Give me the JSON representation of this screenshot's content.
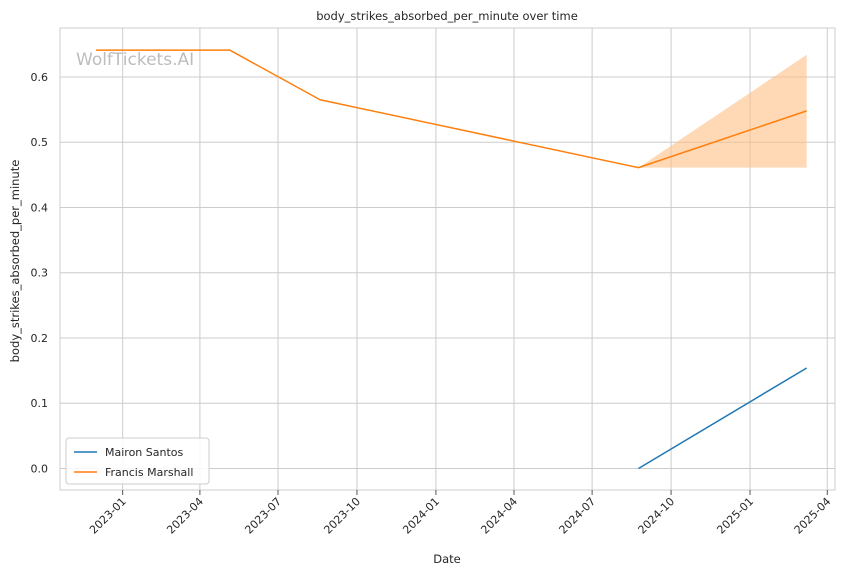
{
  "chart_data": {
    "type": "line",
    "title": "body_strikes_absorbed_per_minute over time",
    "xlabel": "Date",
    "ylabel": "body_strikes_absorbed_per_minute",
    "watermark": "WolfTickets.AI",
    "x_range": [
      "2022-10-20",
      "2025-04-10"
    ],
    "ylim": [
      -0.033,
      0.675
    ],
    "x_ticks": [
      "2023-01",
      "2023-04",
      "2023-07",
      "2023-10",
      "2024-01",
      "2024-04",
      "2024-07",
      "2024-10",
      "2025-01",
      "2025-04"
    ],
    "y_ticks": [
      "0.0",
      "0.1",
      "0.2",
      "0.3",
      "0.4",
      "0.5",
      "0.6"
    ],
    "grid": true,
    "legend_position": "lower-left",
    "series": [
      {
        "name": "Mairon Santos",
        "color": "#1f77b4",
        "points": [
          {
            "x": "2024-08-24",
            "y": 0.0
          },
          {
            "x": "2025-03-08",
            "y": 0.154
          }
        ]
      },
      {
        "name": "Francis Marshall",
        "color": "#ff7f0e",
        "points": [
          {
            "x": "2022-12-01",
            "y": 0.641
          },
          {
            "x": "2023-05-06",
            "y": 0.641
          },
          {
            "x": "2023-08-19",
            "y": 0.565
          },
          {
            "x": "2024-08-24",
            "y": 0.461
          },
          {
            "x": "2025-03-08",
            "y": 0.548
          }
        ],
        "band": {
          "color": "#ffbf86",
          "x": [
            "2024-08-24",
            "2025-03-08"
          ],
          "lower": [
            0.461,
            0.461
          ],
          "upper": [
            0.461,
            0.634
          ]
        }
      }
    ]
  }
}
